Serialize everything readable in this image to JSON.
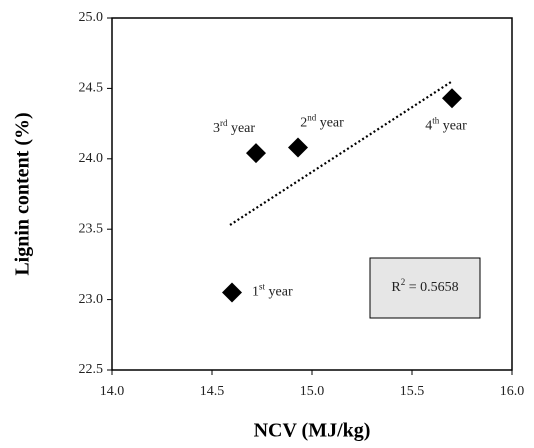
{
  "chart_data": {
    "type": "scatter",
    "x_label": "NCV (MJ/kg)",
    "y_label": "Lignin content (%)",
    "x": [
      14.6,
      14.72,
      14.93,
      15.7
    ],
    "values": [
      23.05,
      24.04,
      24.08,
      24.43
    ],
    "point_labels": [
      [
        "1",
        "st",
        " year"
      ],
      [
        "3",
        "rd",
        " year"
      ],
      [
        "2",
        "nd",
        " year"
      ],
      [
        "4",
        "th",
        " year"
      ]
    ],
    "color": "#000000",
    "trendline": {
      "x": [
        14.59,
        15.7
      ],
      "y": [
        23.53,
        24.55
      ]
    },
    "r_squared_label": [
      "R",
      "2",
      " = 0.5658"
    ],
    "xlim": [
      14.0,
      16.0
    ],
    "xticks": [
      {
        "value": 14,
        "label": "14.0"
      },
      {
        "value": 14.5,
        "label": "14.5"
      },
      {
        "value": 15,
        "label": "15.0"
      },
      {
        "value": 15.5,
        "label": "15.5"
      },
      {
        "value": 16,
        "label": "16.0"
      }
    ],
    "ylim": [
      22.5,
      25.0
    ],
    "yticks": [
      {
        "value": 22.5,
        "label": "22.5"
      },
      {
        "value": 23,
        "label": "23.0"
      },
      {
        "value": 23.5,
        "label": "23.5"
      },
      {
        "value": 24,
        "label": "24.0"
      },
      {
        "value": 24.5,
        "label": "24.5"
      },
      {
        "value": 25,
        "label": "25.0"
      }
    ],
    "grid": false
  }
}
